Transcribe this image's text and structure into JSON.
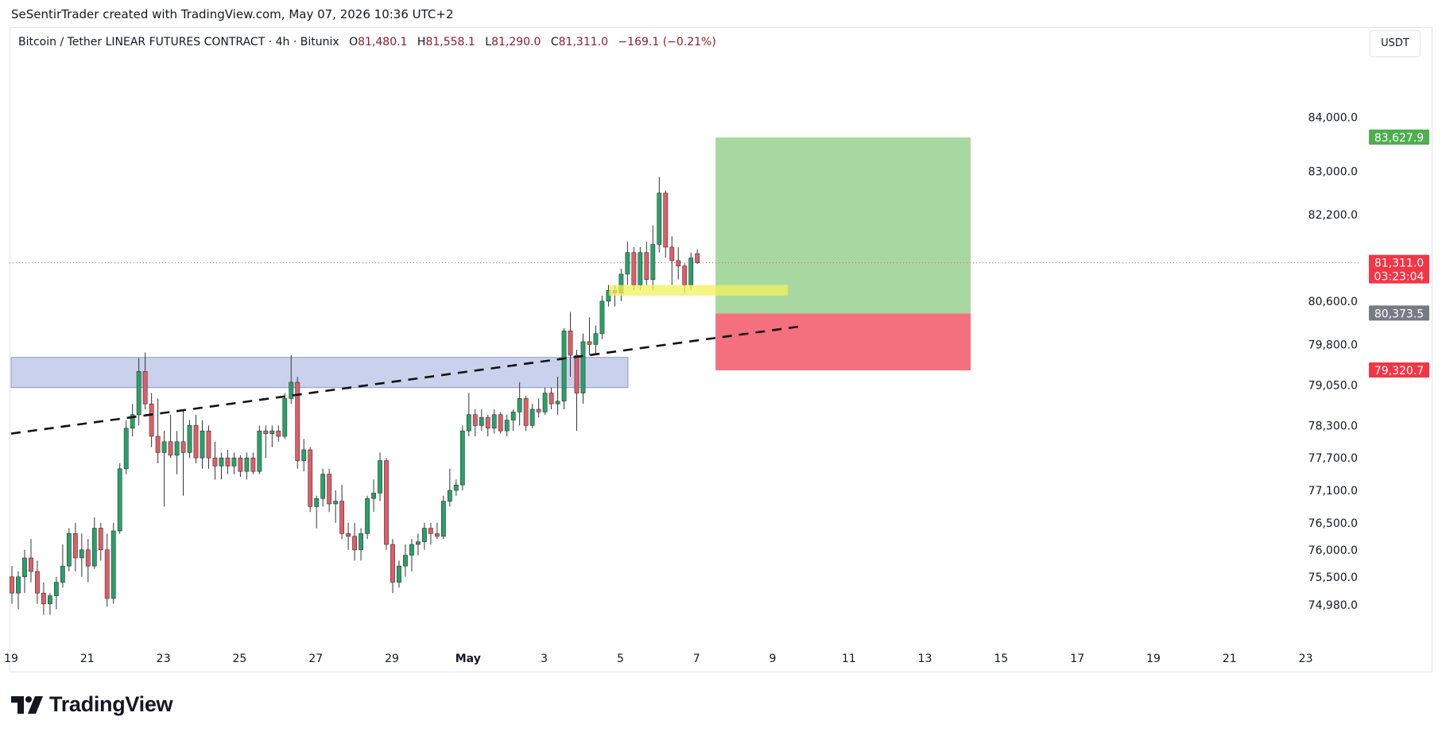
{
  "header": {
    "attribution": "SeSentirTrader created with TradingView.com, May 07, 2026 10:36 UTC+2"
  },
  "legend": {
    "symbol": "Bitcoin / Tether LINEAR FUTURES CONTRACT · 4h · Bitunix",
    "o_label": "O",
    "o_value": "81,480.1",
    "h_label": "H",
    "h_value": "81,558.1",
    "l_label": "L",
    "l_value": "81,290.0",
    "c_label": "C",
    "c_value": "81,311.0",
    "change": "−169.1 (−0.21%)"
  },
  "currency_button": "USDT",
  "footer": {
    "logo_text": "TradingView"
  },
  "colors": {
    "up": "#26a269",
    "down": "#e25c68",
    "zone": "#a8b5e0",
    "target": "#a8d8a0",
    "stop": "#f4707e",
    "highlight": "#f2f25a",
    "tag_green": "#4caf50",
    "tag_red": "#f23645",
    "tag_gray": "#787b86"
  },
  "chart_data": {
    "type": "candlestick",
    "symbol": "BTCUSDT",
    "timeframe": "4h",
    "y_ticks": [
      "84,000.0",
      "83,000.0",
      "82,200.0",
      "80,600.0",
      "79,800.0",
      "79,050.0",
      "78,300.0",
      "77,700.0",
      "77,100.0",
      "76,500.0",
      "76,000.0",
      "75,500.0",
      "74,980.0"
    ],
    "y_tick_values": [
      84000,
      83000,
      82200,
      80600,
      79800,
      79050,
      78300,
      77700,
      77100,
      76500,
      76000,
      75500,
      74980
    ],
    "x_ticks": [
      "19",
      "21",
      "23",
      "25",
      "27",
      "29",
      "May",
      "3",
      "5",
      "7",
      "9",
      "11",
      "13",
      "15",
      "17",
      "19",
      "21",
      "23"
    ],
    "ylim": [
      74700,
      85200
    ],
    "price_tags": [
      {
        "label": "83,627.9",
        "value": 83627.9,
        "color": "tag_green"
      },
      {
        "label": "81,311.0",
        "value": 81311.0,
        "color": "tag_red",
        "countdown": "03:23:04"
      },
      {
        "label": "80,373.5",
        "value": 80373.5,
        "color": "tag_gray"
      },
      {
        "label": "79,320.7",
        "value": 79320.7,
        "color": "tag_red"
      }
    ],
    "last_price": 81311.0,
    "zone": {
      "from_day": 19,
      "to_day": 35.2,
      "low": 79000,
      "high": 79560
    },
    "position": {
      "entry": 80373.5,
      "target": 83627.9,
      "stop": 79320.7,
      "from_day": 37.5,
      "to_day": 44.2
    },
    "highlight": {
      "from_day": 34.7,
      "to_day": 39.4,
      "low": 80700,
      "high": 80900
    },
    "trendline": {
      "day1": 19,
      "price1": 78150,
      "day2": 39.7,
      "price2": 80130
    },
    "candles": [
      {
        "o": 75500,
        "h": 75700,
        "l": 75000,
        "c": 75200
      },
      {
        "o": 75200,
        "h": 75600,
        "l": 74900,
        "c": 75500
      },
      {
        "o": 75500,
        "h": 76000,
        "l": 75200,
        "c": 75850
      },
      {
        "o": 75850,
        "h": 76200,
        "l": 75400,
        "c": 75600
      },
      {
        "o": 75600,
        "h": 75800,
        "l": 75000,
        "c": 75200
      },
      {
        "o": 75200,
        "h": 75400,
        "l": 74800,
        "c": 75000
      },
      {
        "o": 75000,
        "h": 75200,
        "l": 74800,
        "c": 75150
      },
      {
        "o": 75150,
        "h": 75500,
        "l": 74900,
        "c": 75400
      },
      {
        "o": 75400,
        "h": 76100,
        "l": 75300,
        "c": 75700
      },
      {
        "o": 75700,
        "h": 76400,
        "l": 75600,
        "c": 76300
      },
      {
        "o": 76300,
        "h": 76500,
        "l": 75600,
        "c": 75850
      },
      {
        "o": 75850,
        "h": 76300,
        "l": 75500,
        "c": 76000
      },
      {
        "o": 76000,
        "h": 76200,
        "l": 75400,
        "c": 75700
      },
      {
        "o": 75700,
        "h": 76600,
        "l": 75650,
        "c": 76400
      },
      {
        "o": 76400,
        "h": 76500,
        "l": 75800,
        "c": 76000
      },
      {
        "o": 76000,
        "h": 76300,
        "l": 74950,
        "c": 75100
      },
      {
        "o": 75100,
        "h": 76500,
        "l": 75000,
        "c": 76350
      },
      {
        "o": 76350,
        "h": 77600,
        "l": 76300,
        "c": 77500
      },
      {
        "o": 77500,
        "h": 78400,
        "l": 77400,
        "c": 78250
      },
      {
        "o": 78250,
        "h": 78700,
        "l": 78100,
        "c": 78500
      },
      {
        "o": 78500,
        "h": 79550,
        "l": 78300,
        "c": 79300
      },
      {
        "o": 79300,
        "h": 79650,
        "l": 78600,
        "c": 78700
      },
      {
        "o": 78700,
        "h": 78900,
        "l": 77900,
        "c": 78100
      },
      {
        "o": 78100,
        "h": 78800,
        "l": 77600,
        "c": 77800
      },
      {
        "o": 77800,
        "h": 78200,
        "l": 76800,
        "c": 78000
      },
      {
        "o": 78000,
        "h": 78500,
        "l": 77700,
        "c": 77750
      },
      {
        "o": 77750,
        "h": 78200,
        "l": 77400,
        "c": 78000
      },
      {
        "o": 78000,
        "h": 78600,
        "l": 77000,
        "c": 77800
      },
      {
        "o": 77800,
        "h": 78400,
        "l": 77700,
        "c": 78300
      },
      {
        "o": 78300,
        "h": 78500,
        "l": 77600,
        "c": 77700
      },
      {
        "o": 77700,
        "h": 78400,
        "l": 77500,
        "c": 78200
      },
      {
        "o": 78200,
        "h": 78300,
        "l": 77500,
        "c": 77700
      },
      {
        "o": 77700,
        "h": 78000,
        "l": 77300,
        "c": 77550
      },
      {
        "o": 77550,
        "h": 77800,
        "l": 77300,
        "c": 77700
      },
      {
        "o": 77700,
        "h": 77850,
        "l": 77400,
        "c": 77550
      },
      {
        "o": 77550,
        "h": 77800,
        "l": 77400,
        "c": 77700
      },
      {
        "o": 77700,
        "h": 77750,
        "l": 77350,
        "c": 77450
      },
      {
        "o": 77450,
        "h": 77800,
        "l": 77300,
        "c": 77700
      },
      {
        "o": 77700,
        "h": 77800,
        "l": 77400,
        "c": 77450
      },
      {
        "o": 77450,
        "h": 78300,
        "l": 77400,
        "c": 78200
      },
      {
        "o": 78200,
        "h": 78300,
        "l": 77700,
        "c": 78150
      },
      {
        "o": 78150,
        "h": 78300,
        "l": 77900,
        "c": 78200
      },
      {
        "o": 78200,
        "h": 78300,
        "l": 78000,
        "c": 78100
      },
      {
        "o": 78100,
        "h": 78900,
        "l": 78050,
        "c": 78800
      },
      {
        "o": 78800,
        "h": 79600,
        "l": 78700,
        "c": 79100
      },
      {
        "o": 79100,
        "h": 79200,
        "l": 77500,
        "c": 77650
      },
      {
        "o": 77650,
        "h": 78050,
        "l": 77450,
        "c": 77850
      },
      {
        "o": 77850,
        "h": 77900,
        "l": 76700,
        "c": 76800
      },
      {
        "o": 76800,
        "h": 77000,
        "l": 76400,
        "c": 76950
      },
      {
        "o": 76950,
        "h": 77500,
        "l": 76800,
        "c": 77400
      },
      {
        "o": 77400,
        "h": 77500,
        "l": 76700,
        "c": 76850
      },
      {
        "o": 76850,
        "h": 77100,
        "l": 76500,
        "c": 76900
      },
      {
        "o": 76900,
        "h": 77200,
        "l": 76200,
        "c": 76300
      },
      {
        "o": 76300,
        "h": 76500,
        "l": 76000,
        "c": 76250
      },
      {
        "o": 76250,
        "h": 76500,
        "l": 75800,
        "c": 76000
      },
      {
        "o": 76000,
        "h": 76400,
        "l": 75800,
        "c": 76300
      },
      {
        "o": 76300,
        "h": 77000,
        "l": 76200,
        "c": 76950
      },
      {
        "o": 76950,
        "h": 77300,
        "l": 76700,
        "c": 77050
      },
      {
        "o": 77050,
        "h": 77800,
        "l": 76900,
        "c": 77650
      },
      {
        "o": 77650,
        "h": 77700,
        "l": 76000,
        "c": 76100
      },
      {
        "o": 76100,
        "h": 76200,
        "l": 75200,
        "c": 75400
      },
      {
        "o": 75400,
        "h": 75800,
        "l": 75300,
        "c": 75700
      },
      {
        "o": 75700,
        "h": 76100,
        "l": 75500,
        "c": 75900
      },
      {
        "o": 75900,
        "h": 76200,
        "l": 75600,
        "c": 76100
      },
      {
        "o": 76100,
        "h": 76300,
        "l": 75900,
        "c": 76150
      },
      {
        "o": 76150,
        "h": 76500,
        "l": 76000,
        "c": 76400
      },
      {
        "o": 76400,
        "h": 76500,
        "l": 76100,
        "c": 76300
      },
      {
        "o": 76300,
        "h": 76500,
        "l": 76200,
        "c": 76250
      },
      {
        "o": 76250,
        "h": 77000,
        "l": 76200,
        "c": 76900
      },
      {
        "o": 76900,
        "h": 77500,
        "l": 76800,
        "c": 77100
      },
      {
        "o": 77100,
        "h": 77300,
        "l": 77000,
        "c": 77200
      },
      {
        "o": 77200,
        "h": 78300,
        "l": 77100,
        "c": 78200
      },
      {
        "o": 78200,
        "h": 78900,
        "l": 78100,
        "c": 78500
      },
      {
        "o": 78500,
        "h": 78600,
        "l": 78100,
        "c": 78300
      },
      {
        "o": 78300,
        "h": 78600,
        "l": 78200,
        "c": 78450
      },
      {
        "o": 78450,
        "h": 78500,
        "l": 78100,
        "c": 78250
      },
      {
        "o": 78250,
        "h": 78600,
        "l": 78150,
        "c": 78500
      },
      {
        "o": 78500,
        "h": 78550,
        "l": 78150,
        "c": 78200
      },
      {
        "o": 78200,
        "h": 78500,
        "l": 78100,
        "c": 78400
      },
      {
        "o": 78400,
        "h": 78600,
        "l": 78200,
        "c": 78550
      },
      {
        "o": 78550,
        "h": 79100,
        "l": 78300,
        "c": 78800
      },
      {
        "o": 78800,
        "h": 78850,
        "l": 78200,
        "c": 78300
      },
      {
        "o": 78300,
        "h": 78700,
        "l": 78250,
        "c": 78600
      },
      {
        "o": 78600,
        "h": 78800,
        "l": 78450,
        "c": 78550
      },
      {
        "o": 78550,
        "h": 79000,
        "l": 78500,
        "c": 78900
      },
      {
        "o": 78900,
        "h": 79000,
        "l": 78600,
        "c": 78700
      },
      {
        "o": 78700,
        "h": 79200,
        "l": 78500,
        "c": 78750
      },
      {
        "o": 78750,
        "h": 80100,
        "l": 78600,
        "c": 80050
      },
      {
        "o": 80050,
        "h": 80400,
        "l": 79200,
        "c": 79600
      },
      {
        "o": 79600,
        "h": 79700,
        "l": 78200,
        "c": 78900
      },
      {
        "o": 78900,
        "h": 80000,
        "l": 78700,
        "c": 79850
      },
      {
        "o": 79850,
        "h": 80300,
        "l": 79600,
        "c": 79800
      },
      {
        "o": 79800,
        "h": 80150,
        "l": 79600,
        "c": 80000
      },
      {
        "o": 80000,
        "h": 80700,
        "l": 79900,
        "c": 80600
      },
      {
        "o": 80600,
        "h": 80900,
        "l": 80500,
        "c": 80800
      },
      {
        "o": 80800,
        "h": 80900,
        "l": 80500,
        "c": 80750
      },
      {
        "o": 80750,
        "h": 81200,
        "l": 80600,
        "c": 81100
      },
      {
        "o": 81100,
        "h": 81700,
        "l": 80900,
        "c": 81500
      },
      {
        "o": 81500,
        "h": 81600,
        "l": 80800,
        "c": 80900
      },
      {
        "o": 80900,
        "h": 81600,
        "l": 80800,
        "c": 81500
      },
      {
        "o": 81500,
        "h": 81700,
        "l": 80900,
        "c": 81000
      },
      {
        "o": 81000,
        "h": 82000,
        "l": 80800,
        "c": 81650
      },
      {
        "o": 81650,
        "h": 82900,
        "l": 81500,
        "c": 82600
      },
      {
        "o": 82600,
        "h": 82650,
        "l": 81400,
        "c": 81600
      },
      {
        "o": 81600,
        "h": 81800,
        "l": 80900,
        "c": 81350
      },
      {
        "o": 81350,
        "h": 81600,
        "l": 81000,
        "c": 81250
      },
      {
        "o": 81250,
        "h": 81300,
        "l": 80750,
        "c": 80900
      },
      {
        "o": 80900,
        "h": 81500,
        "l": 80800,
        "c": 81400
      },
      {
        "o": 81480,
        "h": 81558,
        "l": 81290,
        "c": 81311
      }
    ]
  }
}
